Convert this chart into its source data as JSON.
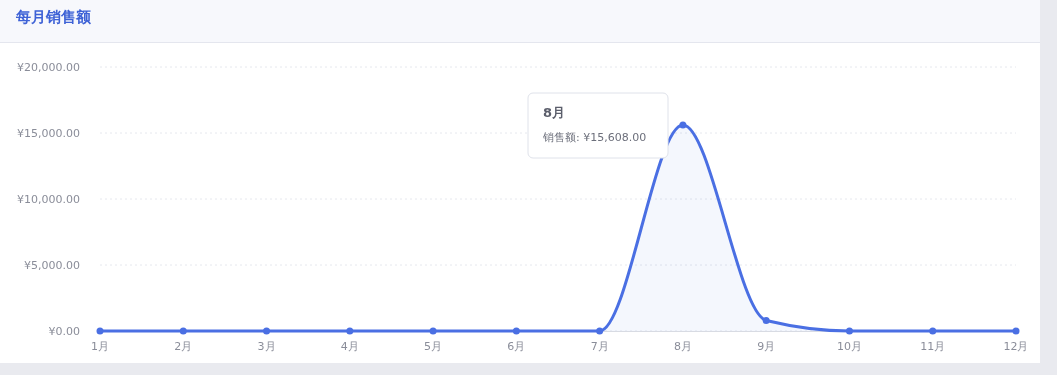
{
  "chart_data": {
    "type": "area",
    "title": "每月销售额",
    "categories": [
      "1月",
      "2月",
      "3月",
      "4月",
      "5月",
      "6月",
      "7月",
      "8月",
      "9月",
      "10月",
      "11月",
      "12月"
    ],
    "series": [
      {
        "color": "#4a6fe3",
        "values": [
          0,
          0,
          0,
          0,
          0,
          0,
          0,
          15608,
          800,
          0,
          0,
          0
        ]
      }
    ],
    "ylim": [
      0,
      20000
    ],
    "yticks": [
      {
        "value": 0,
        "label": "¥0.00"
      },
      {
        "value": 5000,
        "label": "¥5,000.00"
      },
      {
        "value": 10000,
        "label": "¥10,000.00"
      },
      {
        "value": 15000,
        "label": "¥15,000.00"
      },
      {
        "value": 20000,
        "label": "¥20,000.00"
      }
    ],
    "grid": "y",
    "marker": "circle",
    "line_style": "solid",
    "annotations": [
      "8月",
      "销售额: ¥15,608.00"
    ]
  }
}
